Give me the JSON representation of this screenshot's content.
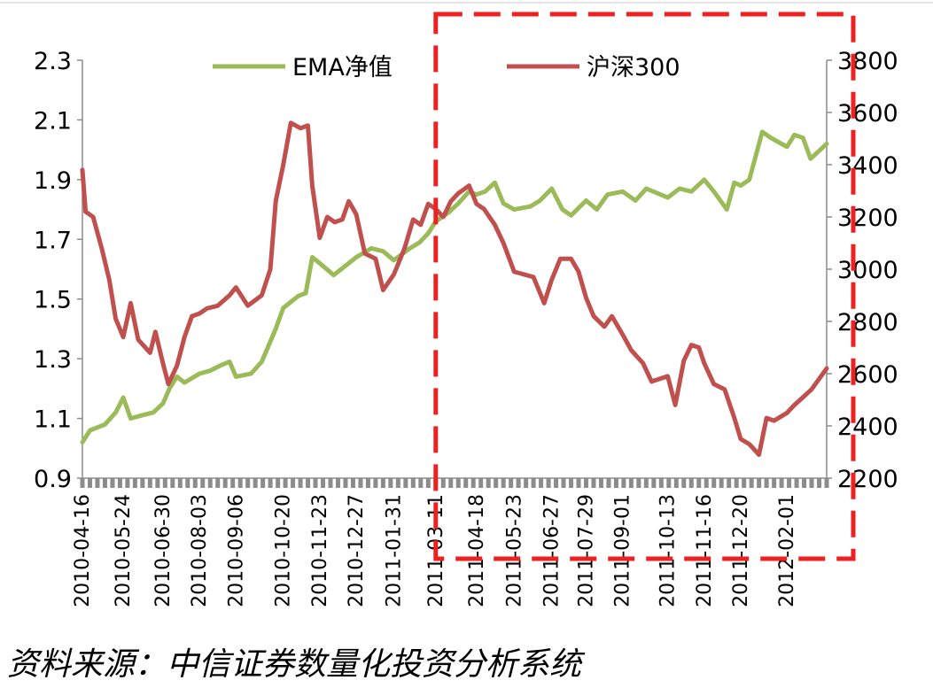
{
  "chart_data": {
    "type": "line",
    "title": "",
    "xlabel": "",
    "ylabel": "",
    "x_tick_labels": [
      "2010-04-16",
      "2010-05-24",
      "2010-06-30",
      "2010-08-03",
      "2010-09-06",
      "2010-10-20",
      "2010-11-23",
      "2010-12-27",
      "2011-01-31",
      "2011-03-11",
      "2011-04-18",
      "2011-05-23",
      "2011-06-27",
      "2011-07-29",
      "2011-09-01",
      "2011-10-13",
      "2011-11-16",
      "2011-12-20",
      "2012-02-01"
    ],
    "x_range": [
      "2010-04-16",
      "2012-03-09"
    ],
    "y_left": {
      "ticks": [
        "0.9",
        "1.1",
        "1.3",
        "1.5",
        "1.7",
        "1.9",
        "2.1",
        "2.3"
      ],
      "range": [
        0.9,
        2.3
      ]
    },
    "y_right": {
      "ticks": [
        "2200",
        "2400",
        "2600",
        "2800",
        "3000",
        "3200",
        "3400",
        "3600",
        "3800"
      ],
      "range": [
        2200,
        3800
      ]
    },
    "legend": {
      "placement": "top",
      "entries": [
        "EMA净值",
        "沪深300"
      ]
    },
    "series": [
      {
        "name": "EMA净值",
        "axis": "left",
        "color": "#9BBB59",
        "points": [
          [
            "2010-04-16",
            1.02
          ],
          [
            "2010-04-23",
            1.06
          ],
          [
            "2010-05-07",
            1.08
          ],
          [
            "2010-05-17",
            1.12
          ],
          [
            "2010-05-24",
            1.17
          ],
          [
            "2010-05-31",
            1.1
          ],
          [
            "2010-06-10",
            1.11
          ],
          [
            "2010-06-21",
            1.12
          ],
          [
            "2010-06-30",
            1.15
          ],
          [
            "2010-07-06",
            1.2
          ],
          [
            "2010-07-13",
            1.24
          ],
          [
            "2010-07-20",
            1.22
          ],
          [
            "2010-08-03",
            1.25
          ],
          [
            "2010-08-13",
            1.26
          ],
          [
            "2010-08-24",
            1.28
          ],
          [
            "2010-08-31",
            1.29
          ],
          [
            "2010-09-06",
            1.24
          ],
          [
            "2010-09-20",
            1.25
          ],
          [
            "2010-09-30",
            1.29
          ],
          [
            "2010-10-13",
            1.4
          ],
          [
            "2010-10-20",
            1.47
          ],
          [
            "2010-11-03",
            1.51
          ],
          [
            "2010-11-10",
            1.52
          ],
          [
            "2010-11-16",
            1.64
          ],
          [
            "2010-11-23",
            1.62
          ],
          [
            "2010-12-06",
            1.58
          ],
          [
            "2010-12-20",
            1.62
          ],
          [
            "2010-12-27",
            1.64
          ],
          [
            "2011-01-10",
            1.67
          ],
          [
            "2011-01-21",
            1.66
          ],
          [
            "2011-01-31",
            1.63
          ],
          [
            "2011-02-15",
            1.67
          ],
          [
            "2011-02-24",
            1.69
          ],
          [
            "2011-03-04",
            1.72
          ],
          [
            "2011-03-11",
            1.76
          ],
          [
            "2011-03-23",
            1.79
          ],
          [
            "2011-04-01",
            1.82
          ],
          [
            "2011-04-11",
            1.86
          ],
          [
            "2011-04-18",
            1.85
          ],
          [
            "2011-04-26",
            1.86
          ],
          [
            "2011-05-05",
            1.89
          ],
          [
            "2011-05-13",
            1.82
          ],
          [
            "2011-05-23",
            1.8
          ],
          [
            "2011-06-07",
            1.81
          ],
          [
            "2011-06-16",
            1.83
          ],
          [
            "2011-06-27",
            1.87
          ],
          [
            "2011-07-07",
            1.8
          ],
          [
            "2011-07-15",
            1.78
          ],
          [
            "2011-07-29",
            1.83
          ],
          [
            "2011-08-08",
            1.8
          ],
          [
            "2011-08-18",
            1.85
          ],
          [
            "2011-09-01",
            1.86
          ],
          [
            "2011-09-13",
            1.83
          ],
          [
            "2011-09-23",
            1.87
          ],
          [
            "2011-10-13",
            1.84
          ],
          [
            "2011-10-24",
            1.87
          ],
          [
            "2011-11-04",
            1.86
          ],
          [
            "2011-11-16",
            1.9
          ],
          [
            "2011-11-25",
            1.86
          ],
          [
            "2011-12-07",
            1.8
          ],
          [
            "2011-12-14",
            1.89
          ],
          [
            "2011-12-20",
            1.88
          ],
          [
            "2011-12-28",
            1.9
          ],
          [
            "2012-01-09",
            2.06
          ],
          [
            "2012-01-17",
            2.04
          ],
          [
            "2012-02-01",
            2.01
          ],
          [
            "2012-02-08",
            2.05
          ],
          [
            "2012-02-16",
            2.04
          ],
          [
            "2012-02-23",
            1.97
          ],
          [
            "2012-03-09",
            2.02
          ]
        ]
      },
      {
        "name": "沪深300",
        "axis": "right",
        "color": "#C0504D",
        "points": [
          [
            "2010-04-16",
            3380
          ],
          [
            "2010-04-19",
            3220
          ],
          [
            "2010-04-26",
            3200
          ],
          [
            "2010-05-04",
            3080
          ],
          [
            "2010-05-11",
            2960
          ],
          [
            "2010-05-17",
            2810
          ],
          [
            "2010-05-24",
            2740
          ],
          [
            "2010-05-31",
            2870
          ],
          [
            "2010-06-07",
            2730
          ],
          [
            "2010-06-18",
            2680
          ],
          [
            "2010-06-23",
            2760
          ],
          [
            "2010-06-30",
            2640
          ],
          [
            "2010-07-05",
            2560
          ],
          [
            "2010-07-13",
            2630
          ],
          [
            "2010-07-20",
            2740
          ],
          [
            "2010-07-27",
            2820
          ],
          [
            "2010-08-03",
            2830
          ],
          [
            "2010-08-10",
            2850
          ],
          [
            "2010-08-20",
            2860
          ],
          [
            "2010-08-31",
            2900
          ],
          [
            "2010-09-06",
            2930
          ],
          [
            "2010-09-17",
            2860
          ],
          [
            "2010-09-30",
            2900
          ],
          [
            "2010-10-08",
            3000
          ],
          [
            "2010-10-13",
            3260
          ],
          [
            "2010-10-20",
            3400
          ],
          [
            "2010-10-27",
            3560
          ],
          [
            "2010-11-05",
            3540
          ],
          [
            "2010-11-12",
            3550
          ],
          [
            "2010-11-16",
            3320
          ],
          [
            "2010-11-23",
            3120
          ],
          [
            "2010-11-30",
            3200
          ],
          [
            "2010-12-07",
            3180
          ],
          [
            "2010-12-14",
            3190
          ],
          [
            "2010-12-20",
            3260
          ],
          [
            "2010-12-27",
            3210
          ],
          [
            "2011-01-04",
            3060
          ],
          [
            "2011-01-14",
            3040
          ],
          [
            "2011-01-21",
            2920
          ],
          [
            "2011-01-31",
            2980
          ],
          [
            "2011-02-10",
            3080
          ],
          [
            "2011-02-18",
            3190
          ],
          [
            "2011-02-25",
            3170
          ],
          [
            "2011-03-04",
            3250
          ],
          [
            "2011-03-11",
            3230
          ],
          [
            "2011-03-18",
            3200
          ],
          [
            "2011-03-25",
            3260
          ],
          [
            "2011-04-01",
            3290
          ],
          [
            "2011-04-11",
            3320
          ],
          [
            "2011-04-18",
            3250
          ],
          [
            "2011-04-25",
            3230
          ],
          [
            "2011-05-05",
            3170
          ],
          [
            "2011-05-13",
            3100
          ],
          [
            "2011-05-23",
            2990
          ],
          [
            "2011-06-01",
            2980
          ],
          [
            "2011-06-10",
            2970
          ],
          [
            "2011-06-20",
            2870
          ],
          [
            "2011-06-27",
            2960
          ],
          [
            "2011-07-05",
            3040
          ],
          [
            "2011-07-15",
            3040
          ],
          [
            "2011-07-22",
            2990
          ],
          [
            "2011-07-29",
            2890
          ],
          [
            "2011-08-05",
            2820
          ],
          [
            "2011-08-15",
            2780
          ],
          [
            "2011-08-22",
            2820
          ],
          [
            "2011-09-01",
            2750
          ],
          [
            "2011-09-09",
            2690
          ],
          [
            "2011-09-20",
            2640
          ],
          [
            "2011-09-28",
            2570
          ],
          [
            "2011-10-13",
            2590
          ],
          [
            "2011-10-20",
            2480
          ],
          [
            "2011-10-28",
            2650
          ],
          [
            "2011-11-04",
            2710
          ],
          [
            "2011-11-11",
            2700
          ],
          [
            "2011-11-16",
            2640
          ],
          [
            "2011-11-25",
            2560
          ],
          [
            "2011-12-05",
            2540
          ],
          [
            "2011-12-14",
            2430
          ],
          [
            "2011-12-20",
            2350
          ],
          [
            "2011-12-28",
            2330
          ],
          [
            "2012-01-06",
            2290
          ],
          [
            "2012-01-13",
            2430
          ],
          [
            "2012-01-20",
            2420
          ],
          [
            "2012-02-01",
            2450
          ],
          [
            "2012-02-08",
            2480
          ],
          [
            "2012-02-16",
            2510
          ],
          [
            "2012-02-24",
            2540
          ],
          [
            "2012-03-09",
            2620
          ]
        ]
      }
    ],
    "annotations": [
      {
        "type": "dashed-box",
        "color": "#EE2020",
        "x_start": "2011-03-11",
        "x_end": "2012-03-09"
      }
    ]
  },
  "source_note": "资料来源：中信证券数量化投资分析系统"
}
